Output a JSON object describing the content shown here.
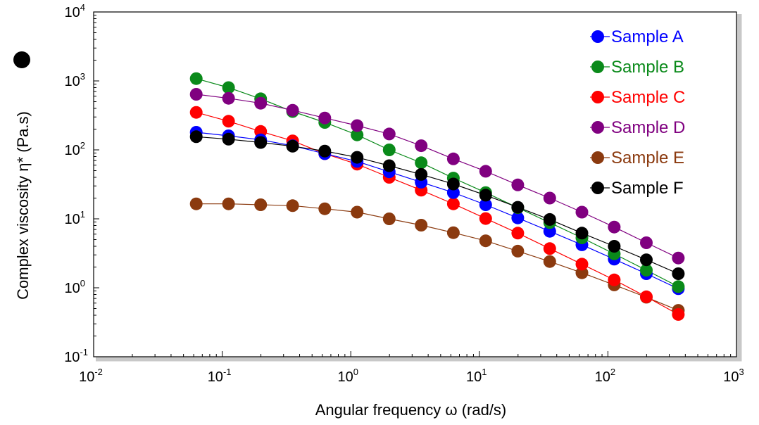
{
  "chart_data": {
    "type": "scatter",
    "xlabel": "Angular frequency  ω  (rad/s)",
    "ylabel": "Complex viscosity  η*  (Pa.s)",
    "x_scale": "log",
    "y_scale": "log",
    "xlim": [
      0.01,
      1000
    ],
    "ylim": [
      0.1,
      10000
    ],
    "x_ticks": [
      {
        "base": "10",
        "exp": "-2"
      },
      {
        "base": "10",
        "exp": "-1"
      },
      {
        "base": "10",
        "exp": "0"
      },
      {
        "base": "10",
        "exp": "1"
      },
      {
        "base": "10",
        "exp": "2"
      },
      {
        "base": "10",
        "exp": "3"
      }
    ],
    "y_ticks": [
      {
        "base": "10",
        "exp": "-1"
      },
      {
        "base": "10",
        "exp": "0"
      },
      {
        "base": "10",
        "exp": "1"
      },
      {
        "base": "10",
        "exp": "2"
      },
      {
        "base": "10",
        "exp": "3"
      },
      {
        "base": "10",
        "exp": "4"
      }
    ],
    "grid": false,
    "legend_position": "top-right",
    "x": [
      0.0628,
      0.112,
      0.199,
      0.353,
      0.628,
      1.12,
      1.99,
      3.53,
      6.28,
      11.2,
      19.9,
      35.3,
      62.8,
      112,
      199,
      353
    ],
    "series": [
      {
        "name": "Sample A",
        "color": "#0000ff",
        "values": [
          180,
          160,
          140,
          115,
          88,
          68,
          48,
          34,
          24,
          16,
          10.3,
          6.6,
          4.2,
          2.6,
          1.6,
          0.97
        ]
      },
      {
        "name": "Sample B",
        "color": "#0a8a1a",
        "values": [
          1080,
          800,
          550,
          360,
          250,
          165,
          100,
          65,
          39,
          24,
          14.5,
          8.8,
          5.3,
          3.1,
          1.8,
          1.04
        ]
      },
      {
        "name": "Sample C",
        "color": "#ff0000",
        "values": [
          350,
          260,
          185,
          135,
          88,
          62,
          40,
          26,
          16.5,
          10.1,
          6.2,
          3.7,
          2.2,
          1.3,
          0.74,
          0.41
        ]
      },
      {
        "name": "Sample D",
        "color": "#800080",
        "values": [
          640,
          560,
          475,
          375,
          290,
          225,
          170,
          115,
          74,
          49,
          31,
          20,
          12.5,
          7.6,
          4.5,
          2.7
        ]
      },
      {
        "name": "Sample E",
        "color": "#8b3a0f",
        "values": [
          16.5,
          16.5,
          16,
          15.5,
          14,
          12.5,
          10,
          8.1,
          6.3,
          4.8,
          3.4,
          2.4,
          1.65,
          1.1,
          0.73,
          0.47
        ]
      },
      {
        "name": "Sample F",
        "color": "#000000",
        "values": [
          155,
          143,
          128,
          113,
          96,
          78,
          59,
          44,
          32,
          22,
          14.7,
          9.8,
          6.2,
          4.0,
          2.55,
          1.6
        ]
      }
    ]
  }
}
